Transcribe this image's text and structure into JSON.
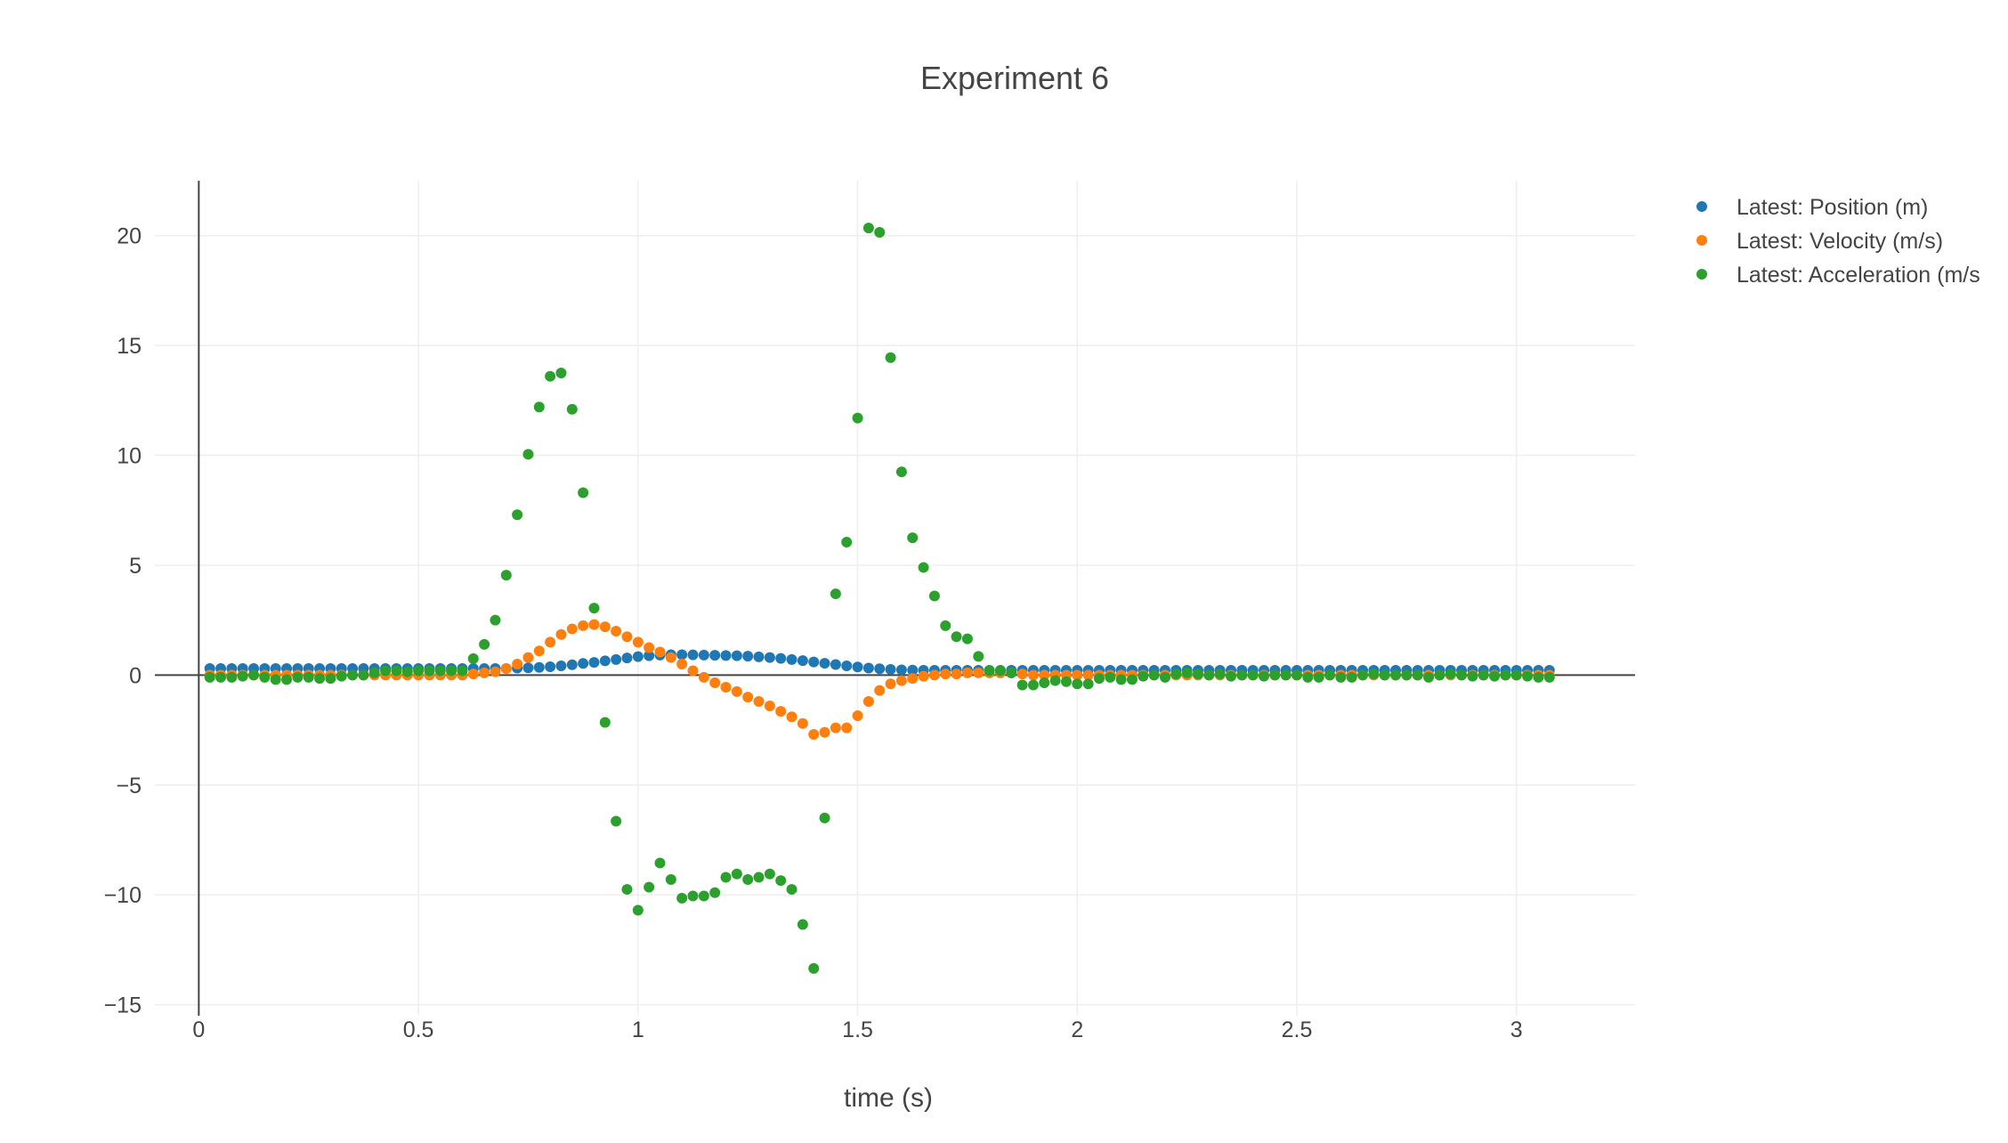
{
  "chart_data": {
    "type": "scatter",
    "title": "Experiment 6",
    "xlabel": "time (s)",
    "ylabel": "",
    "xlim": [
      -0.1,
      3.27
    ],
    "ylim": [
      -15.5,
      22.5
    ],
    "xticks": [
      0,
      0.5,
      1,
      1.5,
      2,
      2.5,
      3
    ],
    "xtick_labels": [
      "0",
      "0.5",
      "1",
      "1.5",
      "2",
      "2.5",
      "3"
    ],
    "yticks": [
      -15,
      -10,
      -5,
      0,
      5,
      10,
      15,
      20
    ],
    "ytick_labels": [
      "−15",
      "−10",
      "−5",
      "0",
      "5",
      "10",
      "15",
      "20"
    ],
    "grid": true,
    "legend_position": "top-right",
    "x": [
      0.025,
      0.05,
      0.075,
      0.1,
      0.125,
      0.15,
      0.175,
      0.2,
      0.225,
      0.25,
      0.275,
      0.3,
      0.325,
      0.35,
      0.375,
      0.4,
      0.425,
      0.45,
      0.475,
      0.5,
      0.525,
      0.55,
      0.575,
      0.6,
      0.625,
      0.65,
      0.675,
      0.7,
      0.725,
      0.75,
      0.775,
      0.8,
      0.825,
      0.85,
      0.875,
      0.9,
      0.925,
      0.95,
      0.975,
      1.0,
      1.025,
      1.05,
      1.075,
      1.1,
      1.125,
      1.15,
      1.175,
      1.2,
      1.225,
      1.25,
      1.275,
      1.3,
      1.325,
      1.35,
      1.375,
      1.4,
      1.425,
      1.45,
      1.475,
      1.5,
      1.525,
      1.55,
      1.575,
      1.6,
      1.625,
      1.65,
      1.675,
      1.7,
      1.725,
      1.75,
      1.775,
      1.8,
      1.825,
      1.85,
      1.875,
      1.9,
      1.925,
      1.95,
      1.975,
      2.0,
      2.025,
      2.05,
      2.075,
      2.1,
      2.125,
      2.15,
      2.175,
      2.2,
      2.225,
      2.25,
      2.275,
      2.3,
      2.325,
      2.35,
      2.375,
      2.4,
      2.425,
      2.45,
      2.475,
      2.5,
      2.525,
      2.55,
      2.575,
      2.6,
      2.625,
      2.65,
      2.675,
      2.7,
      2.725,
      2.75,
      2.775,
      2.8,
      2.825,
      2.85,
      2.875,
      2.9,
      2.925,
      2.95,
      2.975,
      3.0,
      3.025,
      3.05,
      3.075
    ],
    "series": [
      {
        "name": "Latest: Position (m)",
        "color": "#1f77b4",
        "values": [
          0.3,
          0.3,
          0.3,
          0.3,
          0.3,
          0.3,
          0.3,
          0.3,
          0.3,
          0.3,
          0.3,
          0.3,
          0.3,
          0.3,
          0.3,
          0.3,
          0.3,
          0.3,
          0.3,
          0.3,
          0.3,
          0.3,
          0.3,
          0.3,
          0.3,
          0.3,
          0.3,
          0.3,
          0.32,
          0.33,
          0.35,
          0.38,
          0.42,
          0.47,
          0.53,
          0.58,
          0.65,
          0.71,
          0.78,
          0.84,
          0.88,
          0.91,
          0.93,
          0.93,
          0.92,
          0.91,
          0.9,
          0.89,
          0.88,
          0.86,
          0.83,
          0.8,
          0.76,
          0.71,
          0.66,
          0.6,
          0.54,
          0.48,
          0.42,
          0.37,
          0.32,
          0.29,
          0.26,
          0.24,
          0.23,
          0.22,
          0.22,
          0.22,
          0.22,
          0.22,
          0.22,
          0.22,
          0.22,
          0.22,
          0.22,
          0.22,
          0.22,
          0.22,
          0.22,
          0.22,
          0.22,
          0.22,
          0.22,
          0.22,
          0.22,
          0.22,
          0.22,
          0.22,
          0.22,
          0.22,
          0.22,
          0.22,
          0.22,
          0.22,
          0.22,
          0.22,
          0.22,
          0.22,
          0.22,
          0.22,
          0.22,
          0.22,
          0.22,
          0.22,
          0.22,
          0.22,
          0.22,
          0.22,
          0.22,
          0.22,
          0.22,
          0.22,
          0.22,
          0.22,
          0.22,
          0.22,
          0.22,
          0.22,
          0.22,
          0.22,
          0.22,
          0.22,
          0.22
        ]
      },
      {
        "name": "Latest: Velocity (m/s)",
        "color": "#ff7f0e",
        "values": [
          0.0,
          0.0,
          0.0,
          0.0,
          0.0,
          0.0,
          0.0,
          0.0,
          0.0,
          0.0,
          0.0,
          0.0,
          0.0,
          0.0,
          0.0,
          0.0,
          0.0,
          0.0,
          0.0,
          0.0,
          0.0,
          0.0,
          0.0,
          0.0,
          0.05,
          0.1,
          0.15,
          0.3,
          0.5,
          0.8,
          1.1,
          1.5,
          1.85,
          2.1,
          2.25,
          2.3,
          2.2,
          2.0,
          1.75,
          1.5,
          1.25,
          1.05,
          0.8,
          0.5,
          0.2,
          -0.1,
          -0.35,
          -0.55,
          -0.75,
          -1.0,
          -1.2,
          -1.4,
          -1.65,
          -1.9,
          -2.2,
          -2.7,
          -2.6,
          -2.4,
          -2.4,
          -1.85,
          -1.2,
          -0.7,
          -0.4,
          -0.25,
          -0.15,
          -0.05,
          0.0,
          0.05,
          0.05,
          0.1,
          0.1,
          0.1,
          0.1,
          0.1,
          0.05,
          0.0,
          0.0,
          0.0,
          0.0,
          0.0,
          0.0,
          0.0,
          0.0,
          0.0,
          0.0,
          0.0,
          0.0,
          0.0,
          0.0,
          0.0,
          0.0,
          0.0,
          0.0,
          0.0,
          0.0,
          0.0,
          0.0,
          0.0,
          0.0,
          0.0,
          0.0,
          0.0,
          0.0,
          0.0,
          0.0,
          0.0,
          0.0,
          0.0,
          0.0,
          0.0,
          0.0,
          0.0,
          0.0,
          0.0,
          0.0,
          0.0,
          0.0,
          0.0,
          0.0,
          0.0,
          0.0,
          0.0,
          0.0
        ]
      },
      {
        "name": "Latest: Acceleration (m/s",
        "color": "#2ca02c",
        "values": [
          -0.1,
          -0.1,
          -0.1,
          -0.05,
          0.0,
          -0.1,
          -0.2,
          -0.2,
          -0.1,
          -0.1,
          -0.15,
          -0.15,
          -0.05,
          0.0,
          0.0,
          0.1,
          0.2,
          0.2,
          0.15,
          0.2,
          0.2,
          0.2,
          0.2,
          0.2,
          0.75,
          1.4,
          2.5,
          4.55,
          7.3,
          10.05,
          12.2,
          13.6,
          13.75,
          12.1,
          8.3,
          3.05,
          -2.15,
          -6.65,
          -9.75,
          -10.7,
          -9.65,
          -8.55,
          -9.3,
          -10.15,
          -10.05,
          -10.05,
          -9.9,
          -9.2,
          -9.05,
          -9.3,
          -9.2,
          -9.05,
          -9.35,
          -9.75,
          -11.35,
          -13.35,
          -6.5,
          3.7,
          6.05,
          11.7,
          20.35,
          20.15,
          14.45,
          9.25,
          6.25,
          4.9,
          3.6,
          2.25,
          1.75,
          1.65,
          0.85,
          0.2,
          0.2,
          0.1,
          -0.45,
          -0.45,
          -0.35,
          -0.25,
          -0.3,
          -0.4,
          -0.4,
          -0.15,
          -0.1,
          -0.2,
          -0.2,
          -0.05,
          0.0,
          -0.1,
          0.05,
          0.1,
          0.05,
          0.0,
          0.05,
          -0.05,
          0.0,
          0.0,
          -0.05,
          0.0,
          0.0,
          0.0,
          -0.1,
          -0.1,
          0.0,
          -0.1,
          -0.1,
          0.0,
          0.05,
          0.0,
          0.0,
          0.0,
          0.0,
          -0.1,
          0.0,
          0.05,
          0.0,
          -0.05,
          0.0,
          -0.05,
          0.0,
          0.0,
          -0.05,
          -0.1,
          -0.1
        ]
      }
    ]
  }
}
